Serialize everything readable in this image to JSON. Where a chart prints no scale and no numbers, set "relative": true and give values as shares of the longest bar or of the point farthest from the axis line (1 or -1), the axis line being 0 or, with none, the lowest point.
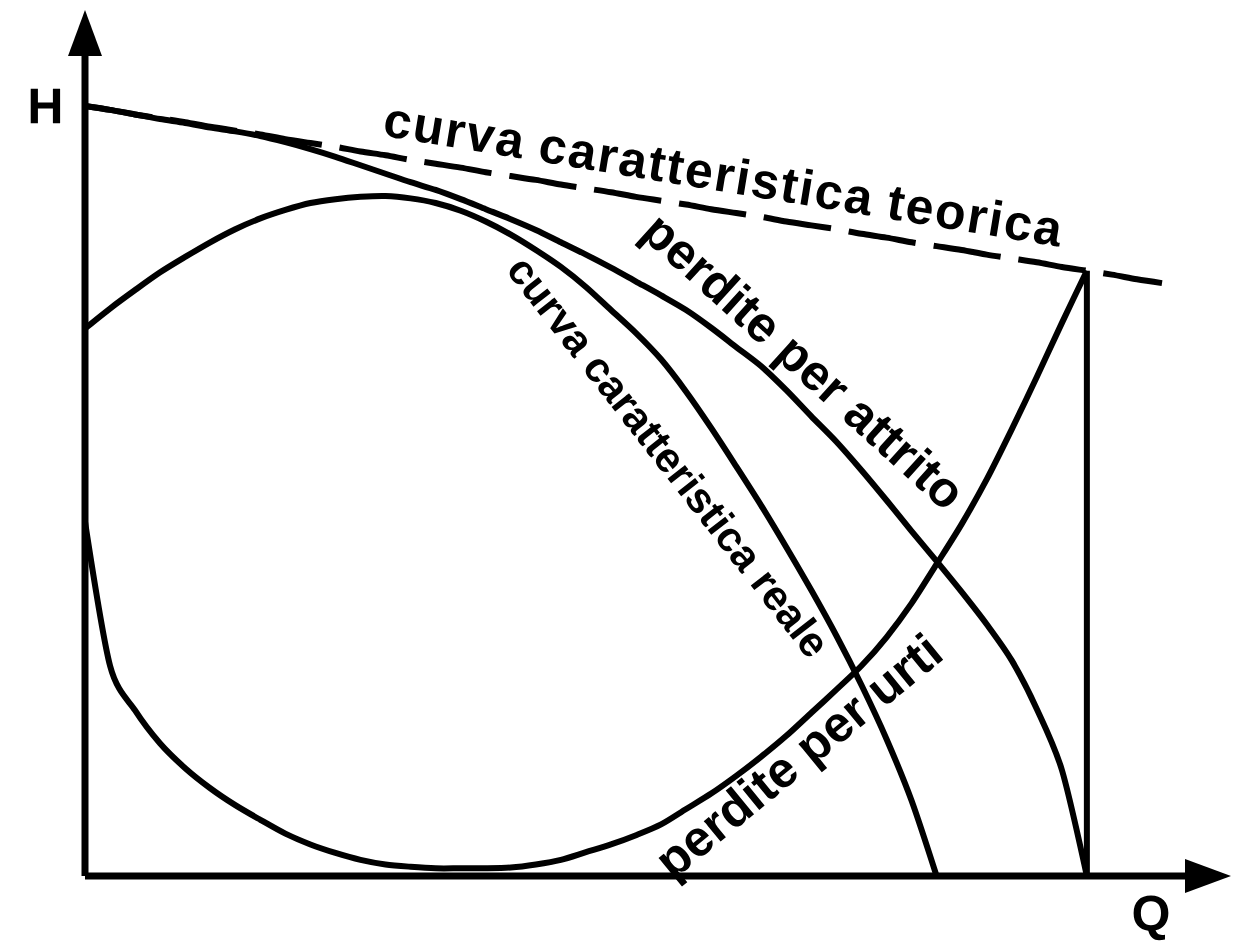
{
  "chart_data": {
    "type": "line",
    "relative": true,
    "xlabel": "Q",
    "ylabel": "H",
    "categories": [
      null,
      null,
      null,
      null,
      null,
      null,
      null,
      null,
      null,
      null,
      null,
      null,
      null,
      null,
      null,
      null,
      null,
      null,
      null,
      null,
      null,
      null,
      null,
      null,
      null,
      null,
      null,
      null,
      null,
      null,
      null,
      null,
      null,
      null,
      null,
      null,
      null,
      null,
      null,
      null,
      null,
      null,
      null,
      null
    ],
    "series": [
      {
        "name": "curva caratteristica teorica",
        "color": "#000000",
        "line_style": "dashed",
        "values": [
          1.0,
          0.995,
          0.989,
          0.984,
          0.979,
          0.973,
          0.968,
          0.963,
          0.957,
          0.952,
          0.947,
          0.941,
          0.936,
          0.93,
          0.925,
          0.92,
          0.914,
          0.909,
          0.904,
          0.898,
          0.893,
          0.888,
          0.882,
          0.877,
          0.872,
          0.866,
          0.861,
          0.856,
          0.85,
          0.845,
          0.84,
          0.834,
          0.829,
          0.823,
          0.818,
          0.813,
          0.807,
          0.802,
          0.797,
          0.791,
          0.786,
          0.781,
          0.775,
          0.77
        ]
      },
      {
        "name": "perdite per attrito",
        "color": "#000000",
        "line_style": "solid",
        "values": [
          1.0,
          0.995,
          0.989,
          0.983,
          0.978,
          0.972,
          0.967,
          0.961,
          0.953,
          0.944,
          0.934,
          0.923,
          0.912,
          0.901,
          0.891,
          0.879,
          0.866,
          0.853,
          0.839,
          0.823,
          0.807,
          0.79,
          0.772,
          0.754,
          0.735,
          0.712,
          0.687,
          0.662,
          0.631,
          0.597,
          0.564,
          0.527,
          0.488,
          0.448,
          0.409,
          0.369,
          0.327,
          0.28,
          0.217,
          0.138,
          0,
          null,
          null,
          null
        ]
      },
      {
        "name": "curva caratteristica reale",
        "color": "#000000",
        "line_style": "solid",
        "values": [
          0.711,
          0.737,
          0.761,
          0.784,
          0.804,
          0.823,
          0.84,
          0.854,
          0.865,
          0.874,
          0.879,
          0.882,
          0.883,
          0.88,
          0.874,
          0.864,
          0.85,
          0.833,
          0.813,
          0.791,
          0.765,
          0.735,
          0.705,
          0.671,
          0.629,
          0.582,
          0.532,
          0.481,
          0.427,
          0.371,
          0.312,
          0.248,
          0.178,
          0.098,
          0,
          null,
          null,
          null,
          null,
          null,
          null,
          null,
          null,
          null
        ]
      },
      {
        "name": "perdite per urti",
        "color": "#000000",
        "line_style": "solid",
        "values": [
          0.46,
          0.273,
          0.215,
          0.172,
          0.14,
          0.114,
          0.092,
          0.073,
          0.055,
          0.041,
          0.03,
          0.021,
          0.015,
          0.012,
          0.01,
          0.01,
          0.01,
          0.011,
          0.015,
          0.021,
          0.031,
          0.041,
          0.053,
          0.067,
          0.087,
          0.107,
          0.13,
          0.155,
          0.182,
          0.212,
          0.242,
          0.273,
          0.31,
          0.354,
          0.405,
          0.457,
          0.515,
          0.58,
          0.648,
          0.718,
          0.786,
          null,
          null,
          null
        ]
      }
    ]
  }
}
